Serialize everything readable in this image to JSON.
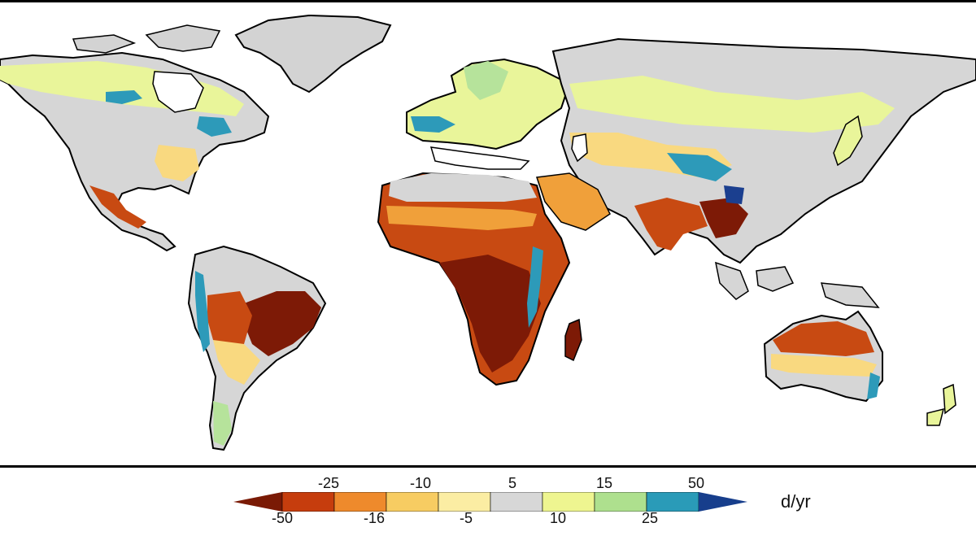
{
  "colorbar": {
    "unit": "d/yr",
    "top_labels": [
      "-25",
      "-10",
      "5",
      "15",
      "50"
    ],
    "bottom_labels": [
      "-50",
      "-16",
      "-5",
      "10",
      "25"
    ],
    "colors": [
      "#7a1a05",
      "#c63d0d",
      "#ee8a2c",
      "#f7cc62",
      "#fbeda3",
      "#d7d7d7",
      "#eef590",
      "#aee08e",
      "#2a9bb8",
      "#173e8c"
    ]
  },
  "map": {
    "colors": {
      "ocean": "#ffffff",
      "ice_grey": "#d3d3d3",
      "strong_decline": "#7d1a06",
      "decline": "#c84a12",
      "mild_decline": "#f0a03a",
      "slight_decline": "#f9d980",
      "neutral": "#d6d6d6",
      "slight_increase": "#e9f59a",
      "increase": "#b6e39b",
      "strong_increase": "#2d9ab9",
      "very_strong_increase": "#1b3f8f"
    }
  }
}
